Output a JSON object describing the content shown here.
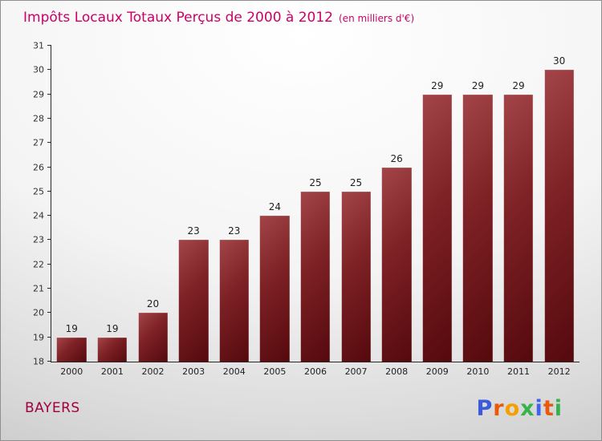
{
  "page": {
    "border_color": "#8f8f8f",
    "background_top": "#ffffff",
    "background_bottom": "#bfbfbf"
  },
  "header": {
    "title": "Impôts Locaux Totaux Perçus de 2000 à 2012",
    "subtitle": "(en milliers d'€)",
    "title_color": "#cc0066"
  },
  "footer": {
    "location_label": "BAYERS",
    "location_color": "#a10040",
    "logo": {
      "name": "Proxiti",
      "letters": [
        {
          "ch": "P",
          "color": "#3b5bdb"
        },
        {
          "ch": "r",
          "color": "#e8590c"
        },
        {
          "ch": "o",
          "color": "#f59f00"
        },
        {
          "ch": "x",
          "color": "#37b24d"
        },
        {
          "ch": "i",
          "color": "#4263eb"
        },
        {
          "ch": "t",
          "color": "#e8590c"
        },
        {
          "ch": "i",
          "color": "#37b24d"
        }
      ]
    }
  },
  "chart_data": {
    "type": "bar",
    "title": "Impôts Locaux Totaux Perçus de 2000 à 2012",
    "subtitle": "(en milliers d'€)",
    "categories": [
      "2000",
      "2001",
      "2002",
      "2003",
      "2004",
      "2005",
      "2006",
      "2007",
      "2008",
      "2009",
      "2010",
      "2011",
      "2012"
    ],
    "values": [
      19,
      19,
      20,
      23,
      23,
      24,
      25,
      25,
      26,
      29,
      29,
      29,
      30
    ],
    "xlabel": "",
    "ylabel": "",
    "ylim": [
      18,
      31
    ],
    "yticks": [
      18,
      19,
      20,
      21,
      22,
      23,
      24,
      25,
      26,
      27,
      28,
      29,
      30,
      31
    ],
    "grid": false,
    "legend": false,
    "bar_colors": {
      "light": "#a34548",
      "mid": "#7e2226",
      "dark": "#55090d"
    },
    "value_label_color": "#1f1f1f"
  }
}
